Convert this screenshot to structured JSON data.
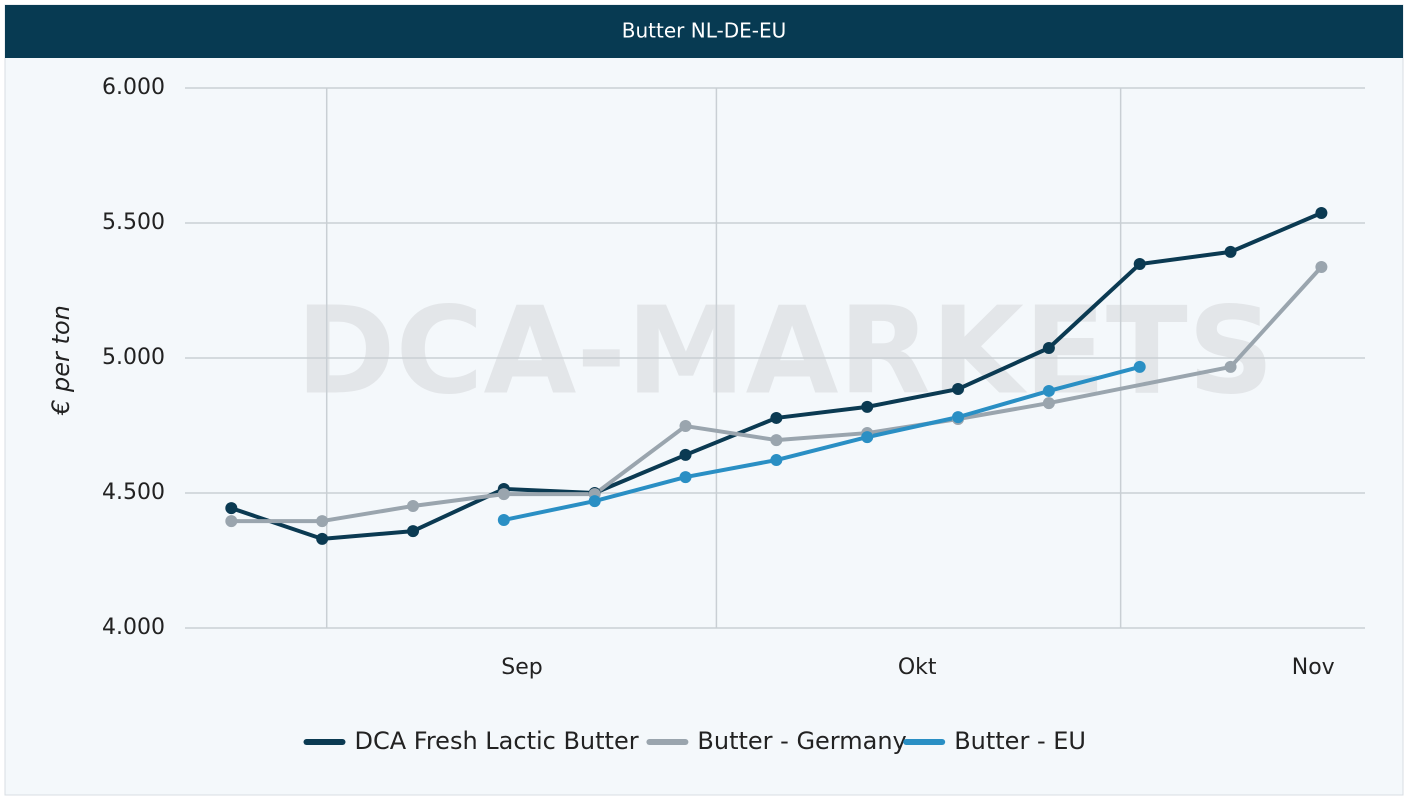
{
  "chart_data": {
    "type": "line",
    "title": "Butter NL-DE-EU",
    "watermark": "DCA-MARKETS",
    "ylabel": "€ per ton",
    "x": [
      0,
      1,
      2,
      3,
      4,
      5,
      6,
      7,
      8,
      9,
      10,
      11,
      12
    ],
    "xlim": [
      -0.51,
      12.48
    ],
    "xticks": [
      {
        "value": 3.2,
        "label": "Sep"
      },
      {
        "value": 7.55,
        "label": "Okt"
      },
      {
        "value": 11.91,
        "label": "Nov"
      }
    ],
    "xgrid": [
      1.05,
      5.34,
      9.79
    ],
    "ylim": [
      4000,
      6000
    ],
    "yticks": [
      {
        "value": 4000,
        "label": "4.000"
      },
      {
        "value": 4500,
        "label": "4.500"
      },
      {
        "value": 5000,
        "label": "5.000"
      },
      {
        "value": 5500,
        "label": "5.500"
      },
      {
        "value": 6000,
        "label": "6.000"
      }
    ],
    "grid": true,
    "legend": "bottom",
    "series": [
      {
        "name": "DCA Fresh Lactic Butter",
        "color": "#0b3a52",
        "values": [
          4444,
          4330,
          4359,
          4515,
          4500,
          4641,
          4778,
          4819,
          4885,
          5037,
          5348,
          5393,
          5537
        ]
      },
      {
        "name": "Butter - Germany",
        "color": "#9aa5ae",
        "x": [
          0,
          1,
          2,
          3,
          4,
          5,
          6,
          7,
          8,
          9,
          11,
          12
        ],
        "values": [
          4396,
          4396,
          4452,
          4496,
          4496,
          4748,
          4696,
          4722,
          4774,
          4833,
          4967,
          5337
        ]
      },
      {
        "name": "Butter - EU",
        "color": "#2a8fc4",
        "values": [
          null,
          null,
          null,
          4400,
          4470,
          4559,
          4622,
          4707,
          4781,
          4878,
          4967,
          null,
          null
        ]
      }
    ]
  }
}
